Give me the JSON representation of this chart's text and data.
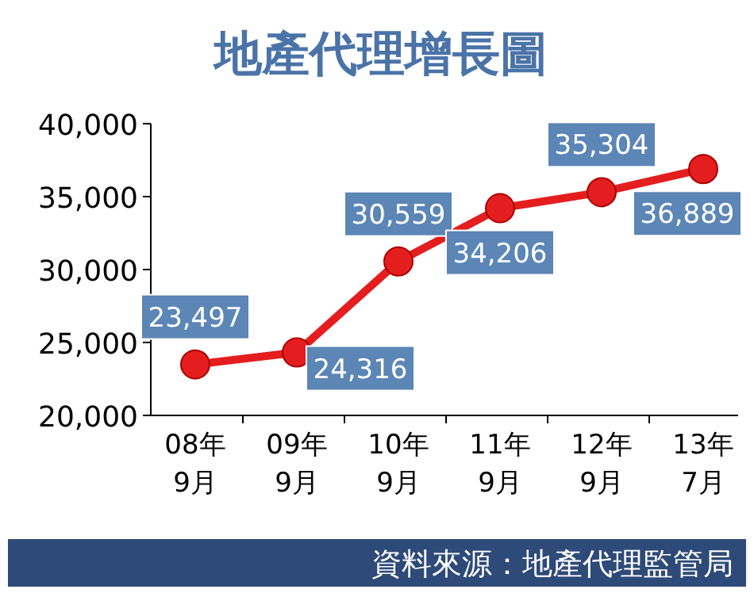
{
  "chart_data": {
    "type": "line",
    "title": "地產代理增長圖",
    "categories": [
      "08年\n9月",
      "09年\n9月",
      "10年\n9月",
      "11年\n9月",
      "12年\n9月",
      "13年\n7月"
    ],
    "series": [
      {
        "color": "#e41e1e",
        "values": [
          23497,
          24316,
          30559,
          34206,
          35304,
          36889
        ],
        "value_labels": [
          "23,497",
          "24,316",
          "30,559",
          "34,206",
          "35,304",
          "36,889"
        ]
      }
    ],
    "ylim": [
      20000,
      40000
    ],
    "yticks": [
      {
        "value": 20000,
        "label": "20,000"
      },
      {
        "value": 25000,
        "label": "25,000"
      },
      {
        "value": 30000,
        "label": "30,000"
      },
      {
        "value": 35000,
        "label": "35,000"
      },
      {
        "value": 40000,
        "label": "40,000"
      }
    ],
    "marker": "circle",
    "line_style": "solid",
    "grid": false,
    "annotations": [
      "資料來源：地產代理監管局"
    ]
  }
}
